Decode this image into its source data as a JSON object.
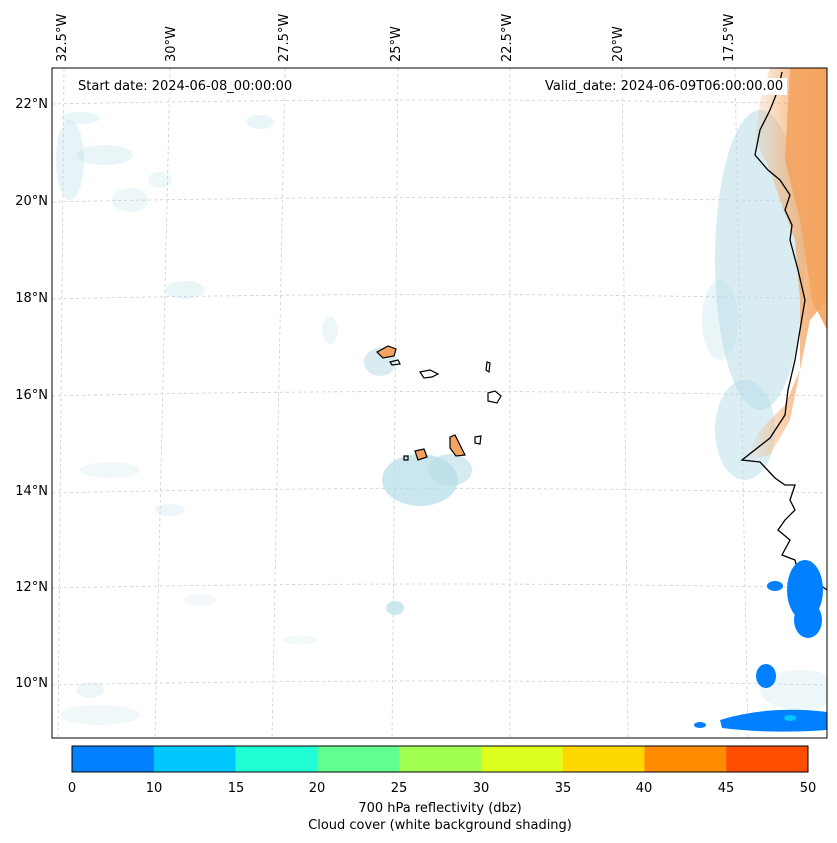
{
  "header": {
    "start_date": "Start date: 2024-06-08_00:00:00",
    "valid_date": "Valid_date: 2024-06-09T06:00:00.00"
  },
  "axes": {
    "lon_labels": [
      "32.5°W",
      "30°W",
      "27.5°W",
      "25°W",
      "22.5°W",
      "20°W",
      "17.5°W"
    ],
    "lat_labels": [
      "22°N",
      "20°N",
      "18°N",
      "16°N",
      "14°N",
      "12°N",
      "10°N"
    ]
  },
  "colorbar": {
    "ticks": [
      "0",
      "10",
      "15",
      "20",
      "25",
      "30",
      "35",
      "40",
      "45",
      "50"
    ],
    "colors": [
      "#0080ff",
      "#00c8ff",
      "#20ffd4",
      "#60ff90",
      "#a0ff50",
      "#dcff20",
      "#ffd700",
      "#ff8c00",
      "#ff4e00"
    ],
    "label": "700 hPa reflectivity (dbz)",
    "sublabel": "Cloud cover (white background shading)"
  },
  "colors": {
    "land_fill": "#f4a460",
    "cloud": "#b8dde8",
    "reflectivity_low": "#0080ff",
    "coastline": "#000000"
  }
}
